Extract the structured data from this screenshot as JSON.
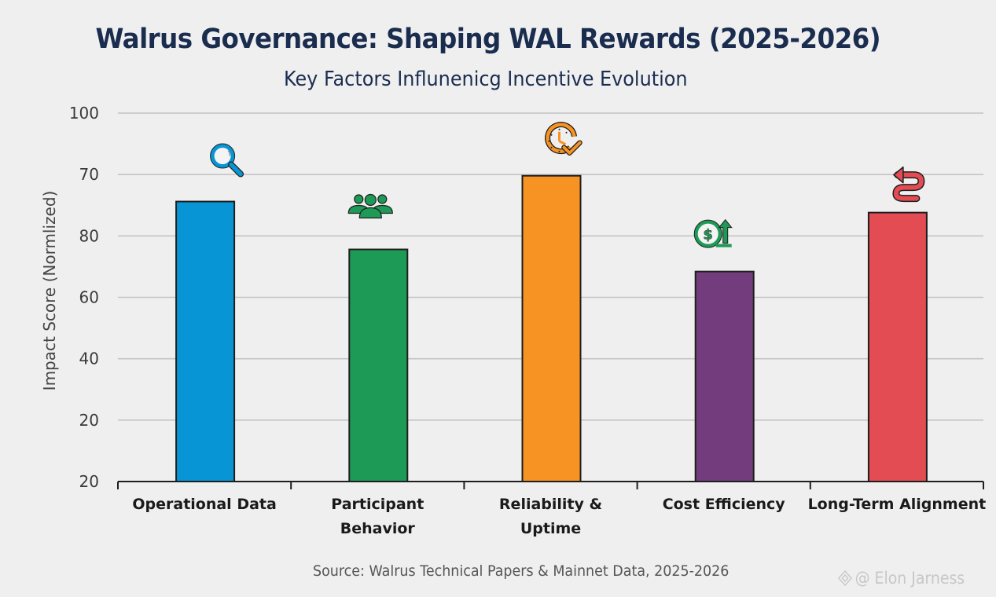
{
  "chart_data": {
    "type": "bar",
    "title": "Walrus Governance: Shaping WAL Rewards (2025-2026)",
    "subtitle": "Key Factors Influnenicg Incentive Evolution",
    "xlabel": "",
    "ylabel": "Impact Score (Normlized)",
    "ytick_labels": [
      "100",
      "70",
      "80",
      "60",
      "40",
      "20",
      "20"
    ],
    "ylim": [
      0,
      100
    ],
    "grid": true,
    "categories": [
      {
        "label": [
          "Operational Data"
        ],
        "icon": "magnifier-icon"
      },
      {
        "label": [
          "Participant",
          "Behavior"
        ],
        "icon": "people-group-icon"
      },
      {
        "label": [
          "Reliability &",
          "Uptime"
        ],
        "icon": "clock-check-icon"
      },
      {
        "label": [
          "Cost Efficiency"
        ],
        "icon": "dollar-up-arrow-icon"
      },
      {
        "label": [
          "Long-Term Alignment"
        ],
        "icon": "curved-return-arrow-icon"
      }
    ],
    "values": [
      76,
      63,
      83,
      57,
      73
    ],
    "colors": [
      "#0795d6",
      "#1e9a57",
      "#f69322",
      "#733d7d",
      "#e34c53"
    ],
    "legend": "none",
    "source": "Source: Walrus Technical Papers & Mainnet Data, 2025-2026"
  },
  "watermark": {
    "text": "@ Elon Jarness"
  }
}
